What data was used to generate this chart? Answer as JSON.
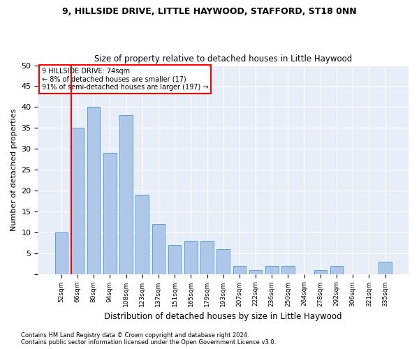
{
  "title": "9, HILLSIDE DRIVE, LITTLE HAYWOOD, STAFFORD, ST18 0NN",
  "subtitle": "Size of property relative to detached houses in Little Haywood",
  "xlabel": "Distribution of detached houses by size in Little Haywood",
  "ylabel": "Number of detached properties",
  "categories": [
    "52sqm",
    "66sqm",
    "80sqm",
    "94sqm",
    "108sqm",
    "123sqm",
    "137sqm",
    "151sqm",
    "165sqm",
    "179sqm",
    "193sqm",
    "207sqm",
    "222sqm",
    "236sqm",
    "250sqm",
    "264sqm",
    "278sqm",
    "292sqm",
    "306sqm",
    "321sqm",
    "335sqm"
  ],
  "values": [
    10,
    35,
    40,
    29,
    38,
    19,
    12,
    7,
    8,
    8,
    6,
    2,
    1,
    2,
    2,
    0,
    1,
    2,
    0,
    0,
    3
  ],
  "bar_color": "#aec6e8",
  "bar_edge_color": "#5a9fd4",
  "background_color": "#e8eef8",
  "annotation_box_text": [
    "9 HILLSIDE DRIVE: 74sqm",
    "← 8% of detached houses are smaller (17)",
    "91% of semi-detached houses are larger (197) →"
  ],
  "annotation_box_color": "white",
  "annotation_box_edge_color": "red",
  "vline_color": "red",
  "vline_x": 0.6,
  "ylim": [
    0,
    50
  ],
  "yticks": [
    0,
    5,
    10,
    15,
    20,
    25,
    30,
    35,
    40,
    45,
    50
  ],
  "footnote1": "Contains HM Land Registry data © Crown copyright and database right 2024.",
  "footnote2": "Contains public sector information licensed under the Open Government Licence v3.0."
}
